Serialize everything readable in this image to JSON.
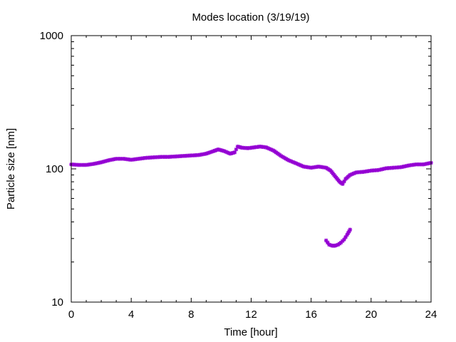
{
  "chart_data": {
    "type": "scatter",
    "title": "Modes location (3/19/19)",
    "xlabel": "Time [hour]",
    "ylabel": "Particle size [nm]",
    "xlim": [
      0,
      24
    ],
    "ylim": [
      10,
      1000
    ],
    "y_scale": "log",
    "grid": false,
    "color": "#9400d3",
    "marker": "star",
    "x_ticks": [
      0,
      4,
      8,
      12,
      16,
      20,
      24
    ],
    "x_tick_labels": [
      "0",
      "4",
      "8",
      "12",
      "16",
      "20",
      "24"
    ],
    "y_ticks": [
      10,
      100,
      1000
    ],
    "y_tick_labels": [
      "10",
      "100",
      "1000"
    ],
    "series": [
      {
        "x": [
          0,
          0.5,
          1,
          1.5,
          2,
          2.5,
          3,
          3.5,
          4,
          4.5,
          5,
          5.5,
          6,
          6.5,
          7,
          7.5,
          8,
          8.5,
          9,
          9.5,
          9.8,
          10.2,
          10.6,
          10.9,
          11.1,
          11.4,
          11.8,
          12.2,
          12.6,
          13,
          13.5,
          14,
          14.5,
          15,
          15.5,
          16,
          16.5,
          17,
          17.3,
          17.6,
          17.9,
          18.1,
          18.3,
          18.6,
          19,
          19.5,
          20,
          20.5,
          21,
          21.5,
          22,
          22.5,
          23,
          23.5,
          24
        ],
        "y": [
          108,
          107,
          107,
          109,
          112,
          116,
          119,
          119,
          117,
          119,
          121,
          122,
          123,
          123,
          124,
          125,
          126,
          127,
          130,
          136,
          140,
          136,
          130,
          133,
          147,
          144,
          143,
          145,
          147,
          145,
          137,
          125,
          116,
          110,
          104,
          102,
          104,
          102,
          97,
          88,
          80,
          77,
          84,
          90,
          94,
          95,
          97,
          98,
          101,
          102,
          103,
          106,
          108,
          108,
          111
        ]
      },
      {
        "x": [
          17,
          17.2,
          17.4,
          17.6,
          17.8,
          18,
          18.2,
          18.4,
          18.6
        ],
        "y": [
          29,
          27,
          26.5,
          26.5,
          27,
          28,
          29.5,
          32,
          35
        ]
      }
    ]
  }
}
